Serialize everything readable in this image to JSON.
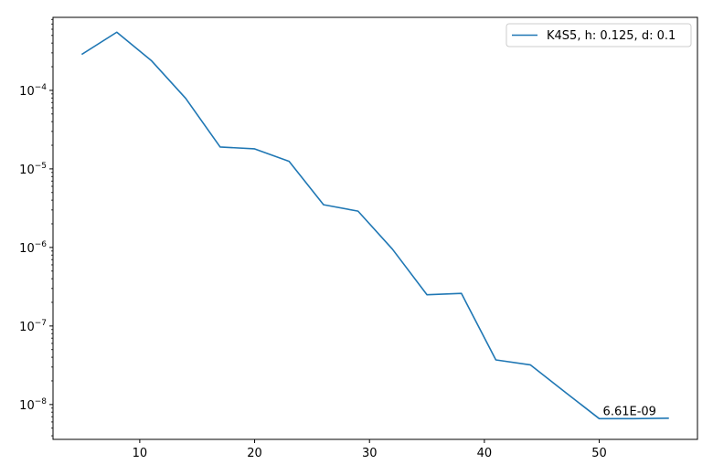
{
  "chart_data": {
    "type": "line",
    "title": "",
    "xlabel": "",
    "ylabel": "",
    "x_scale": "linear",
    "y_scale": "log",
    "xlim": [
      2.45,
      58.55
    ],
    "ylim": [
      3.6e-09,
      0.00085
    ],
    "grid": false,
    "legend_position": "top-right",
    "x_ticks": [
      10,
      20,
      30,
      40,
      50
    ],
    "y_ticks": [
      {
        "value": 1e-08,
        "base": "10",
        "exponent": "−8"
      },
      {
        "value": 1e-07,
        "base": "10",
        "exponent": "−7"
      },
      {
        "value": 1e-06,
        "base": "10",
        "exponent": "−6"
      },
      {
        "value": 1e-05,
        "base": "10",
        "exponent": "−5"
      },
      {
        "value": 0.0001,
        "base": "10",
        "exponent": "−4"
      }
    ],
    "series": [
      {
        "name": "K4S5, h: 0.125, d: 0.1",
        "color": "#1f77b4",
        "x": [
          5,
          8,
          11,
          14,
          17,
          20,
          23,
          26,
          29,
          32,
          35,
          38,
          41,
          44,
          47,
          50,
          53,
          56
        ],
        "y": [
          0.00029,
          0.00055,
          0.00024,
          7.9e-05,
          1.9e-05,
          1.8e-05,
          1.25e-05,
          3.5e-06,
          2.9e-06,
          9.5e-07,
          2.5e-07,
          2.6e-07,
          3.7e-08,
          3.2e-08,
          1.45e-08,
          6.61e-09,
          6.61e-09,
          6.7e-09
        ]
      }
    ],
    "annotations": [
      {
        "text": "6.61E-09",
        "x": 50,
        "y": 6.61e-09
      }
    ]
  }
}
